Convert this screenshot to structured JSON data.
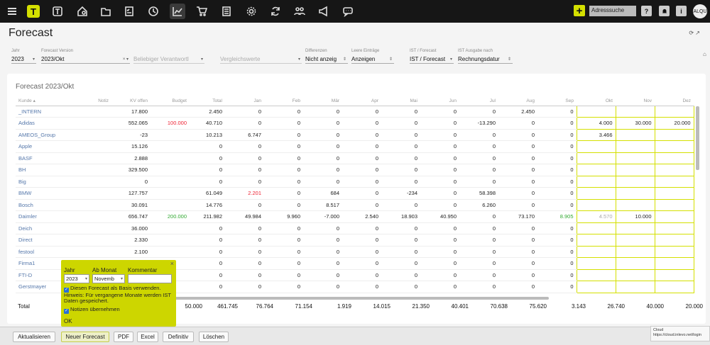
{
  "topbar": {
    "address_placeholder": "Adresssuche",
    "help_label": "?",
    "info_label": "i",
    "logo_label": "T",
    "plus_label": "+",
    "avatar_label": "ALQU",
    "icons": [
      "menu-icon",
      "logo-t-icon",
      "t-icon",
      "home-location-icon",
      "folder-icon",
      "checklist-icon",
      "clock-icon",
      "chart-icon",
      "cart-icon",
      "document-icon",
      "gear-icon",
      "sync-icon",
      "people-icon",
      "megaphone-icon",
      "chat-icon"
    ]
  },
  "page": {
    "title": "Forecast"
  },
  "filters": {
    "jahr": {
      "label": "Jahr",
      "value": "2023"
    },
    "version": {
      "label": "Forecast Version",
      "value": "2023/Okt"
    },
    "verantwortlich": {
      "value": "Beliebiger Verantwortl"
    },
    "vergleich": {
      "value": "Vergleichswerte"
    },
    "differenzen": {
      "label": "Differenzen",
      "value": "Nicht anzeig"
    },
    "leere": {
      "label": "Leere Einträge",
      "value": "Anzeigen"
    },
    "ist": {
      "label": "IST / Forecast",
      "value": "IST / Forecast"
    },
    "ausgabe": {
      "label": "IST Ausgabe nach",
      "value": "Rechnungsdatur"
    }
  },
  "table": {
    "title": "Forecast 2023/Okt",
    "columns": [
      "Kunde ▴",
      "Notiz",
      "KV offen",
      "Budget",
      "Total",
      "Jan",
      "Feb",
      "Mär",
      "Apr",
      "Mai",
      "Jun",
      "Jul",
      "Aug",
      "Sep",
      "Okt",
      "Nov",
      "Dez"
    ],
    "rows": [
      [
        "_INTERN",
        "",
        "17.800",
        "",
        "2.450",
        "0",
        "0",
        "0",
        "0",
        "0",
        "0",
        "0",
        "2.450",
        "0",
        "",
        "",
        ""
      ],
      [
        "Adidas",
        "",
        "552.065",
        "100.000",
        "40.710",
        "0",
        "0",
        "0",
        "0",
        "0",
        "0",
        "-13.290",
        "0",
        "0",
        "4.000",
        "30.000",
        "20.000"
      ],
      [
        "AMEOS_Group",
        "",
        "-23",
        "",
        "10.213",
        "6.747",
        "0",
        "0",
        "0",
        "0",
        "0",
        "0",
        "0",
        "0",
        "3.466",
        "",
        ""
      ],
      [
        "Apple",
        "",
        "15.126",
        "",
        "0",
        "0",
        "0",
        "0",
        "0",
        "0",
        "0",
        "0",
        "0",
        "0",
        "",
        "",
        ""
      ],
      [
        "BASF",
        "",
        "2.888",
        "",
        "0",
        "0",
        "0",
        "0",
        "0",
        "0",
        "0",
        "0",
        "0",
        "0",
        "",
        "",
        ""
      ],
      [
        "BH",
        "",
        "329.500",
        "",
        "0",
        "0",
        "0",
        "0",
        "0",
        "0",
        "0",
        "0",
        "0",
        "0",
        "",
        "",
        ""
      ],
      [
        "Big",
        "",
        "0",
        "",
        "0",
        "0",
        "0",
        "0",
        "0",
        "0",
        "0",
        "0",
        "0",
        "0",
        "",
        "",
        ""
      ],
      [
        "BMW",
        "",
        "127.757",
        "",
        "61.049",
        "2.201",
        "0",
        "684",
        "0",
        "-234",
        "0",
        "58.398",
        "0",
        "0",
        "",
        "",
        ""
      ],
      [
        "Bosch",
        "",
        "30.091",
        "",
        "14.776",
        "0",
        "0",
        "8.517",
        "0",
        "0",
        "0",
        "6.260",
        "0",
        "0",
        "",
        "",
        ""
      ],
      [
        "Daimler",
        "",
        "656.747",
        "200.000",
        "211.982",
        "49.984",
        "9.960",
        "-7.000",
        "2.540",
        "18.903",
        "40.950",
        "0",
        "73.170",
        "8.905",
        "4.570",
        "10.000",
        ""
      ],
      [
        "Deich",
        "",
        "36.000",
        "",
        "0",
        "0",
        "0",
        "0",
        "0",
        "0",
        "0",
        "0",
        "0",
        "0",
        "",
        "",
        ""
      ],
      [
        "Direct",
        "",
        "2.330",
        "",
        "0",
        "0",
        "0",
        "0",
        "0",
        "0",
        "0",
        "0",
        "0",
        "0",
        "",
        "",
        ""
      ],
      [
        "festool",
        "",
        "2.100",
        "",
        "0",
        "0",
        "0",
        "0",
        "0",
        "0",
        "0",
        "0",
        "0",
        "0",
        "",
        "",
        ""
      ],
      [
        "Firma1",
        "",
        "",
        "",
        "0",
        "0",
        "0",
        "0",
        "0",
        "0",
        "0",
        "0",
        "0",
        "0",
        "",
        "",
        ""
      ],
      [
        "FTI-D",
        "",
        "",
        "",
        "0",
        "0",
        "0",
        "0",
        "0",
        "0",
        "0",
        "0",
        "0",
        "0",
        "",
        "",
        ""
      ],
      [
        "Gerstmayer",
        "",
        "",
        "",
        "0",
        "0",
        "0",
        "0",
        "0",
        "0",
        "0",
        "0",
        "0",
        "0",
        "",
        "",
        ""
      ]
    ],
    "total": {
      "label": "Total",
      "values": [
        "50.000",
        "461.745",
        "76.764",
        "71.154",
        "1.919",
        "14.015",
        "21.350",
        "40.401",
        "70.638",
        "75.620",
        "3.143",
        "26.740",
        "40.000",
        "20.000"
      ]
    }
  },
  "popup": {
    "jahr_label": "Jahr",
    "ab_monat_label": "Ab Monat",
    "kommentar_label": "Kommentar",
    "jahr_value": "2023",
    "monat_value": "Novemb",
    "check1": "Diesen Forecast als Basis verwenden. Hinweis: Für vergangene Monate werden IST Daten gespeichert.",
    "check2": "Notizen übernehmen",
    "ok": "OK"
  },
  "buttons": [
    "Aktualisieren",
    "Neuer Forecast",
    "PDF",
    "Excel",
    "Definitiv",
    "Löschen"
  ],
  "tooltip": {
    "line1": "Cloud",
    "line2": "https://cloud.inlevo.net/login"
  }
}
